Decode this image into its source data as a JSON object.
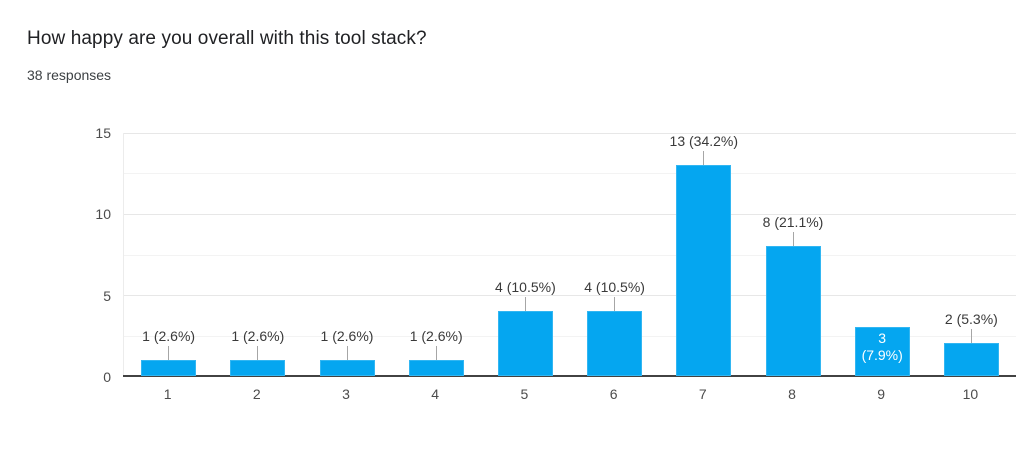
{
  "page": {
    "title": "How happy are you overall with this tool stack?",
    "subtitle": "38 responses"
  },
  "chart_data": {
    "type": "bar",
    "title": "How happy are you overall with this tool stack?",
    "subtitle": "38 responses",
    "total_responses": 38,
    "categories": [
      "1",
      "2",
      "3",
      "4",
      "5",
      "6",
      "7",
      "8",
      "9",
      "10"
    ],
    "values": [
      1,
      1,
      1,
      1,
      4,
      4,
      13,
      8,
      3,
      2
    ],
    "bars": [
      {
        "category": "1",
        "value": 1,
        "label": "1 (2.6%)",
        "placement": "above"
      },
      {
        "category": "2",
        "value": 1,
        "label": "1 (2.6%)",
        "placement": "above"
      },
      {
        "category": "3",
        "value": 1,
        "label": "1 (2.6%)",
        "placement": "above"
      },
      {
        "category": "4",
        "value": 1,
        "label": "1 (2.6%)",
        "placement": "above"
      },
      {
        "category": "5",
        "value": 4,
        "label": "4 (10.5%)",
        "placement": "above"
      },
      {
        "category": "6",
        "value": 4,
        "label": "4 (10.5%)",
        "placement": "above"
      },
      {
        "category": "7",
        "value": 13,
        "label": "13 (34.2%)",
        "placement": "above"
      },
      {
        "category": "8",
        "value": 8,
        "label": "8 (21.1%)",
        "placement": "above"
      },
      {
        "category": "9",
        "value": 3,
        "label": "3 (7.9%)",
        "placement": "inside",
        "lines": [
          "3",
          "(7.9%)"
        ]
      },
      {
        "category": "10",
        "value": 2,
        "label": "2 (5.3%)",
        "placement": "above"
      }
    ],
    "xlabel": "",
    "ylabel": "",
    "ylim": [
      0,
      15
    ],
    "yticks_major": [
      0,
      5,
      10,
      15
    ],
    "yticks_minor": [
      2.5,
      7.5,
      12.5
    ],
    "grid": true,
    "legend": "none",
    "colors": {
      "bar": "#05a6f0",
      "bar_label_inside": "#ffffff",
      "annotation": "#3a3a3a",
      "connector": "#a6a6a6",
      "axis_line": "#424242",
      "grid_major": "#e7e7e7",
      "grid_minor": "#f3f3f3",
      "tick_label": "#4c4c4c",
      "title": "#202124",
      "subtitle": "#3c4043"
    }
  }
}
